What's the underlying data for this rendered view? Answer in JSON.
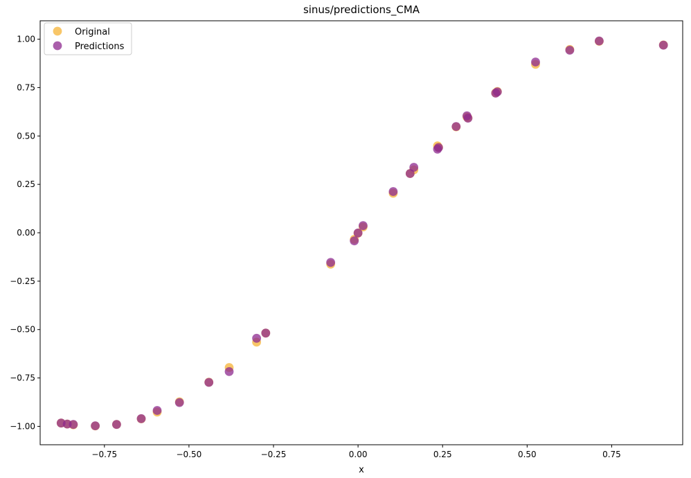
{
  "chart_data": {
    "type": "scatter",
    "title": "sinus/predictions_CMA",
    "xlabel": "x",
    "ylabel": "",
    "xlim": [
      -0.94,
      0.96
    ],
    "ylim": [
      -1.095,
      1.095
    ],
    "xticks": [
      -0.75,
      -0.5,
      -0.25,
      0.0,
      0.25,
      0.5,
      0.75
    ],
    "xtick_labels": [
      "−0.75",
      "−0.50",
      "−0.25",
      "0.00",
      "0.25",
      "0.50",
      "0.75"
    ],
    "yticks": [
      -1.0,
      -0.75,
      -0.5,
      -0.25,
      0.0,
      0.25,
      0.5,
      0.75,
      1.0
    ],
    "ytick_labels": [
      "−1.00",
      "−0.75",
      "−0.50",
      "−0.25",
      "0.00",
      "0.25",
      "0.50",
      "0.75",
      "1.00"
    ],
    "grid": false,
    "legend_position": "top-left",
    "series": [
      {
        "name": "Original",
        "color": "#F5B335",
        "x": [
          -0.878,
          -0.86,
          -0.842,
          -0.777,
          -0.714,
          -0.641,
          -0.594,
          -0.528,
          -0.441,
          -0.381,
          -0.3,
          -0.273,
          -0.081,
          -0.011,
          0.0,
          0.015,
          0.104,
          0.154,
          0.165,
          0.235,
          0.238,
          0.29,
          0.322,
          0.325,
          0.407,
          0.412,
          0.525,
          0.626,
          0.713,
          0.903
        ],
        "y": [
          -0.983,
          -0.988,
          -0.992,
          -0.998,
          -0.99,
          -0.961,
          -0.926,
          -0.873,
          -0.772,
          -0.696,
          -0.565,
          -0.518,
          -0.162,
          -0.034,
          -0.002,
          0.03,
          0.204,
          0.306,
          0.325,
          0.449,
          0.441,
          0.547,
          0.598,
          0.594,
          0.723,
          0.73,
          0.87,
          0.947,
          0.989,
          0.97
        ]
      },
      {
        "name": "Predictions",
        "color": "#8E2A8F",
        "x": [
          -0.878,
          -0.86,
          -0.842,
          -0.777,
          -0.714,
          -0.641,
          -0.594,
          -0.528,
          -0.441,
          -0.381,
          -0.3,
          -0.273,
          -0.081,
          -0.011,
          0.0,
          0.015,
          0.104,
          0.154,
          0.165,
          0.235,
          0.238,
          0.29,
          0.322,
          0.325,
          0.407,
          0.412,
          0.525,
          0.626,
          0.713,
          0.903
        ],
        "y": [
          -0.983,
          -0.988,
          -0.99,
          -0.997,
          -0.99,
          -0.96,
          -0.918,
          -0.877,
          -0.773,
          -0.717,
          -0.545,
          -0.518,
          -0.153,
          -0.042,
          -0.001,
          0.037,
          0.213,
          0.306,
          0.338,
          0.432,
          0.44,
          0.549,
          0.604,
          0.592,
          0.721,
          0.728,
          0.882,
          0.943,
          0.991,
          0.969
        ]
      }
    ]
  }
}
